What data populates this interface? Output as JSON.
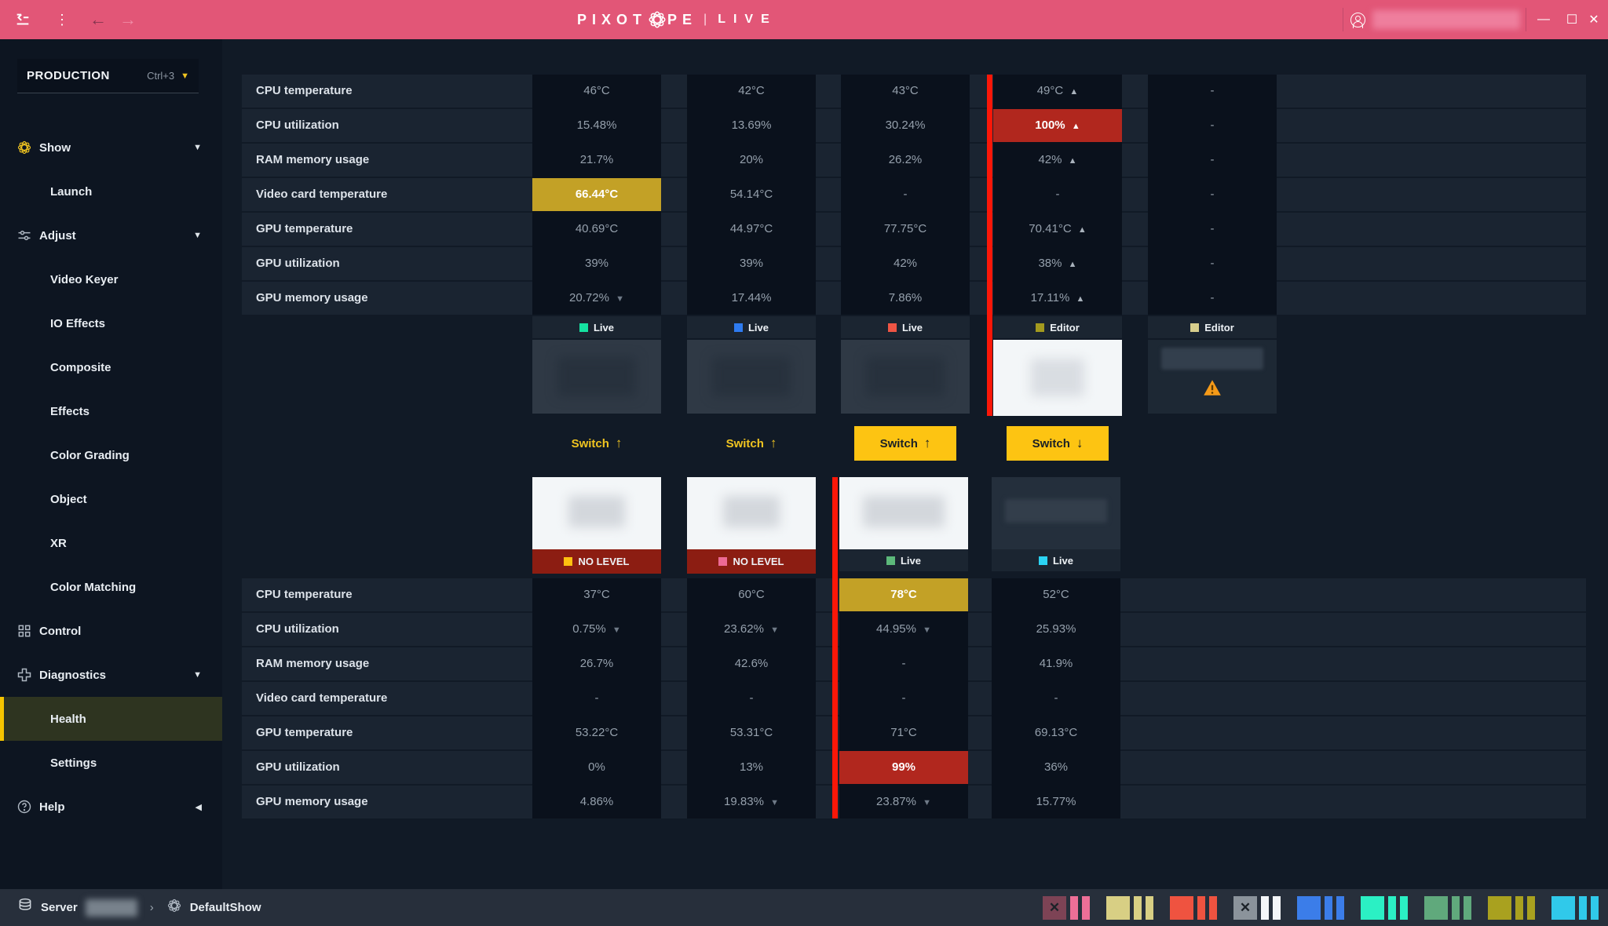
{
  "colors": {
    "topbar": "#e25677",
    "accent_yellow": "#fdc412",
    "warn_cell": "#c3a126",
    "alert_cell": "#b1271e",
    "alert_line": "#fb1708",
    "main_bg": "#111a26",
    "sidebar_bg": "#0d1521",
    "statusbar_bg": "#272f3b"
  },
  "titlebar": {
    "brand_left": "PIXOT",
    "brand_right": "PE",
    "pipe": "|",
    "product": "LIVE",
    "window": {
      "minimize": "—",
      "maximize": "☐",
      "close": "✕"
    }
  },
  "sidebar": {
    "context": {
      "label": "PRODUCTION",
      "shortcut": "Ctrl+3",
      "caret": "▼"
    },
    "items": [
      {
        "label": "Show",
        "icon": "pixotope-flower-icon",
        "caret": "down",
        "level": 0
      },
      {
        "label": "Launch",
        "level": 1
      },
      {
        "label": "Adjust",
        "icon": "sliders-icon",
        "caret": "down",
        "level": 0
      },
      {
        "label": "Video Keyer",
        "level": 1
      },
      {
        "label": "IO Effects",
        "level": 1
      },
      {
        "label": "Composite",
        "level": 1
      },
      {
        "label": "Effects",
        "level": 1
      },
      {
        "label": "Color Grading",
        "level": 1
      },
      {
        "label": "Object",
        "level": 1
      },
      {
        "label": "XR",
        "level": 1
      },
      {
        "label": "Color Matching",
        "level": 1
      },
      {
        "label": "Control",
        "icon": "grid-icon",
        "level": 0
      },
      {
        "label": "Diagnostics",
        "icon": "health-cross-icon",
        "caret": "down",
        "level": 0
      },
      {
        "label": "Health",
        "level": 1,
        "selected": true
      },
      {
        "label": "Settings",
        "level": 1
      },
      {
        "label": "Help",
        "icon": "help-icon",
        "caret": "left",
        "level": 0
      }
    ]
  },
  "monitor": {
    "metric_labels": [
      "CPU temperature",
      "CPU utilization",
      "RAM memory usage",
      "Video card temperature",
      "GPU temperature",
      "GPU utilization",
      "GPU memory usage"
    ],
    "top_machines": [
      {
        "badge": "Live",
        "badge_color": "#15e2a1",
        "tile": "dark",
        "values": [
          "46°C",
          "15.48%",
          "21.7%",
          "66.44°C",
          "40.69°C",
          "39%",
          "20.72% ▼"
        ],
        "states": [
          "",
          "",
          "",
          "warn",
          "",
          "",
          ""
        ],
        "switch": {
          "label": "Switch",
          "direction": "up",
          "filled": false
        }
      },
      {
        "badge": "Live",
        "badge_color": "#2e7bf0",
        "tile": "dark",
        "values": [
          "42°C",
          "13.69%",
          "20%",
          "54.14°C",
          "44.97°C",
          "39%",
          "17.44%"
        ],
        "states": [
          "",
          "",
          "",
          "",
          "",
          "",
          ""
        ],
        "switch": {
          "label": "Switch",
          "direction": "up",
          "filled": false
        }
      },
      {
        "badge": "Live",
        "badge_color": "#ef5544",
        "tile": "dark",
        "values": [
          "43°C",
          "30.24%",
          "26.2%",
          "-",
          "77.75°C",
          "42%",
          "7.86%"
        ],
        "states": [
          "",
          "",
          "",
          "",
          "",
          "",
          ""
        ],
        "switch": {
          "label": "Switch",
          "direction": "up",
          "filled": true
        }
      },
      {
        "badge": "Editor",
        "badge_color": "#a39a1f",
        "tile": "white",
        "alert_line": true,
        "values": [
          "49°C ▲",
          "100% ▲",
          "42% ▲",
          "-",
          "70.41°C ▲",
          "38% ▲",
          "17.11% ▲"
        ],
        "states": [
          "",
          "alert",
          "",
          "",
          "",
          "",
          ""
        ],
        "switch": {
          "label": "Switch",
          "direction": "down",
          "filled": true
        }
      },
      {
        "badge": "Editor",
        "badge_color": "#d7ce8c",
        "tile": "darker-warning",
        "values": [
          "-",
          "-",
          "-",
          "-",
          "-",
          "-",
          "-"
        ],
        "states": [
          "",
          "",
          "",
          "",
          "",
          "",
          ""
        ],
        "switch": null
      }
    ],
    "bottom_machines": [
      {
        "badge": "NO LEVEL",
        "badge_color": "#ffc010",
        "badge_style": "nolevel",
        "tile": "white",
        "values": [
          "37°C",
          "0.75% ▼",
          "26.7%",
          "-",
          "53.22°C",
          "0%",
          "4.86%"
        ],
        "states": [
          "",
          "",
          "",
          "",
          "",
          "",
          ""
        ]
      },
      {
        "badge": "NO LEVEL",
        "badge_color": "#ed6a95",
        "badge_style": "nolevel",
        "tile": "white",
        "values": [
          "60°C",
          "23.62% ▼",
          "42.6%",
          "-",
          "53.31°C",
          "13%",
          "19.83% ▼"
        ],
        "states": [
          "",
          "",
          "",
          "",
          "",
          "",
          ""
        ]
      },
      {
        "badge": "Live",
        "badge_color": "#5cb87a",
        "badge_style": "live",
        "tile": "white",
        "alert_line": true,
        "values": [
          "78°C",
          "44.95% ▼",
          "-",
          "-",
          "71°C",
          "99%",
          "23.87% ▼"
        ],
        "states": [
          "warn",
          "",
          "",
          "",
          "",
          "alert",
          ""
        ]
      },
      {
        "badge": "Live",
        "badge_color": "#2bd3f3",
        "badge_style": "live",
        "tile": "dark",
        "values": [
          "52°C",
          "25.93%",
          "41.9%",
          "-",
          "69.13°C",
          "36%",
          "15.77%"
        ],
        "states": [
          "",
          "",
          "",
          "",
          "",
          "",
          ""
        ]
      }
    ]
  },
  "statusbar": {
    "server_label": "Server",
    "chevron": "›",
    "show_name": "DefaultShow",
    "blocks": [
      {
        "main": "#7d4355",
        "x": true,
        "bars": "#ed6f97"
      },
      {
        "main": "#d8cf84",
        "x": false,
        "bars": "#d8cf84"
      },
      {
        "main": "#ef5340",
        "x": false,
        "bars": "#ef5340"
      },
      {
        "main": "#8b939b",
        "x": true,
        "bars": "#f4f6f8"
      },
      {
        "main": "#3b7de9",
        "x": false,
        "bars": "#3b7de9"
      },
      {
        "main": "#2bf0c4",
        "x": false,
        "bars": "#2bf0c4"
      },
      {
        "main": "#60a97c",
        "x": false,
        "bars": "#60a97c"
      },
      {
        "main": "#a9a11f",
        "x": false,
        "bars": "#a9a11f"
      },
      {
        "main": "#30c9ea",
        "x": false,
        "bars": "#30c9ea"
      }
    ]
  }
}
